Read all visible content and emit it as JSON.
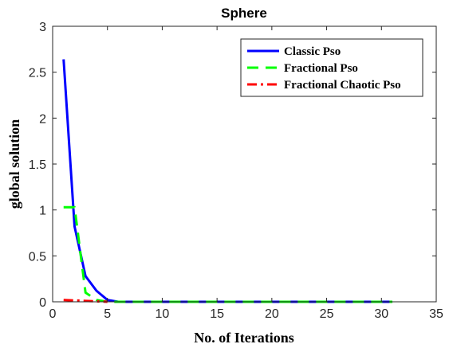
{
  "chart_data": {
    "type": "line",
    "title": "Sphere",
    "xlabel": "No. of Iterations",
    "ylabel": "global solution",
    "xlim": [
      0,
      35
    ],
    "ylim": [
      0,
      3
    ],
    "xticks": [
      "0",
      "5",
      "10",
      "15",
      "20",
      "25",
      "30",
      "35"
    ],
    "yticks": [
      "0",
      "0.5",
      "1",
      "1.5",
      "2",
      "2.5",
      "3"
    ],
    "grid": false,
    "legend_position": "top-right",
    "series": [
      {
        "name": "Classic Pso",
        "color": "#0000ff",
        "style": "solid",
        "x": [
          1,
          2,
          3,
          4,
          5,
          6,
          7,
          8,
          9,
          10,
          11,
          12,
          13,
          14,
          15,
          16,
          17,
          18,
          19,
          20,
          21,
          22,
          23,
          24,
          25,
          26,
          27,
          28,
          29,
          30,
          31
        ],
        "y": [
          2.64,
          0.82,
          0.28,
          0.12,
          0.02,
          0,
          0,
          0,
          0,
          0,
          0,
          0,
          0,
          0,
          0,
          0,
          0,
          0,
          0,
          0,
          0,
          0,
          0,
          0,
          0,
          0,
          0,
          0,
          0,
          0,
          0
        ]
      },
      {
        "name": "Fractional Pso",
        "color": "#00ff00",
        "style": "dashed",
        "x": [
          1,
          2,
          3,
          4,
          5,
          6,
          7,
          8,
          9,
          10,
          11,
          12,
          13,
          14,
          15,
          16,
          17,
          18,
          19,
          20,
          21,
          22,
          23,
          24,
          25,
          26,
          27,
          28,
          29,
          30,
          31
        ],
        "y": [
          1.03,
          1.03,
          0.1,
          0.02,
          0,
          0,
          0,
          0,
          0,
          0,
          0,
          0,
          0,
          0,
          0,
          0,
          0,
          0,
          0,
          0,
          0,
          0,
          0,
          0,
          0,
          0,
          0,
          0,
          0,
          0,
          0
        ]
      },
      {
        "name": "Fractional Chaotic Pso",
        "color": "#ff0000",
        "style": "dashdot",
        "x": [
          1,
          2,
          3,
          4,
          5
        ],
        "y": [
          0.02,
          0.015,
          0.01,
          0.005,
          0
        ]
      }
    ]
  }
}
